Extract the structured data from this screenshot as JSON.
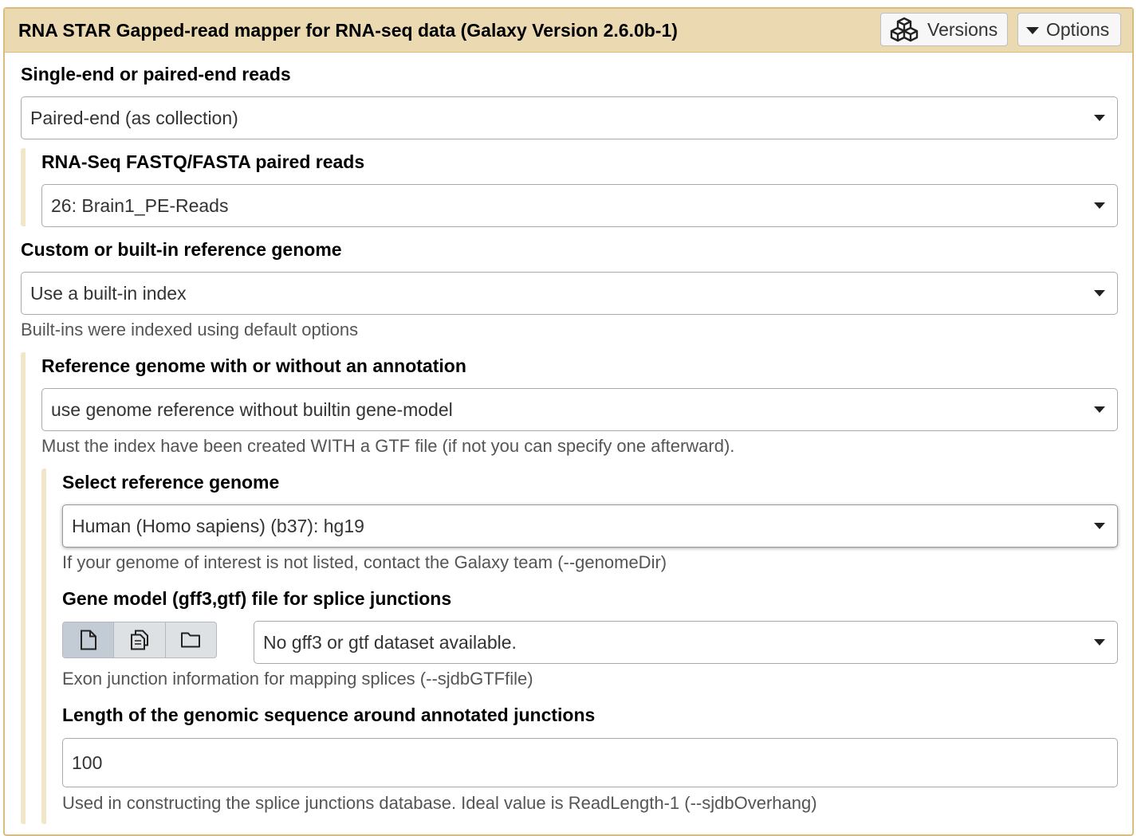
{
  "header": {
    "title": "RNA STAR Gapped-read mapper for RNA-seq data (Galaxy Version 2.6.0b-1)",
    "versions_label": "Versions",
    "options_label": "Options"
  },
  "form": {
    "reads_mode": {
      "label": "Single-end or paired-end reads",
      "value": "Paired-end (as collection)"
    },
    "paired_reads": {
      "label": "RNA-Seq FASTQ/FASTA paired reads",
      "value": "26: Brain1_PE-Reads"
    },
    "ref_genome_source": {
      "label": "Custom or built-in reference genome",
      "value": "Use a built-in index",
      "help": "Built-ins were indexed using default options"
    },
    "annotation_mode": {
      "label": "Reference genome with or without an annotation",
      "value": "use genome reference without builtin gene-model",
      "help": "Must the index have been created WITH a GTF file (if not you can specify one afterward)."
    },
    "ref_genome": {
      "label": "Select reference genome",
      "value": "Human (Homo sapiens) (b37): hg19",
      "help": "If your genome of interest is not listed, contact the Galaxy team (--genomeDir)"
    },
    "gene_model": {
      "label": "Gene model (gff3,gtf) file for splice junctions",
      "value": "No gff3 or gtf dataset available.",
      "help": "Exon junction information for mapping splices (--sjdbGTFfile)"
    },
    "overhang": {
      "label": "Length of the genomic sequence around annotated junctions",
      "value": "100",
      "help": "Used in constructing the splice junctions database. Ideal value is ReadLength-1 (--sjdbOverhang)"
    }
  }
}
